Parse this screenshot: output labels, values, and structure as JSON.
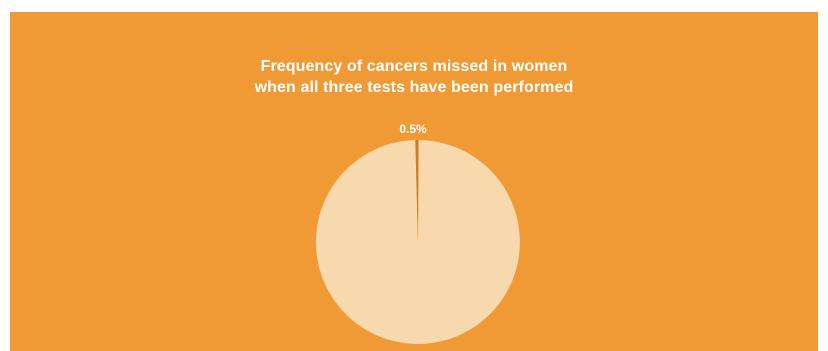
{
  "chart_data": {
    "type": "pie",
    "title_lines": [
      "Frequency of cancers missed in women",
      "when all three tests have been performed"
    ],
    "slices": [
      {
        "label": "0.5%",
        "value": 0.5,
        "color": "#cc7d24"
      },
      {
        "label": "",
        "value": 99.5,
        "color": "#f8d8ad"
      }
    ],
    "start_angle_deg": -1.5,
    "colors": {
      "background": "#ef9a35",
      "title": "#ffffff",
      "label": "#ffffff"
    }
  }
}
